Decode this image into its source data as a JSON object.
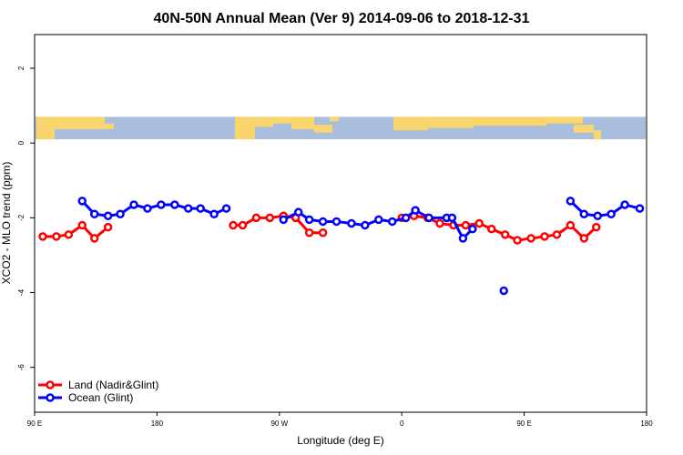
{
  "chart_data": {
    "type": "line",
    "title": "40N-50N Annual Mean (Ver 9)   2014-09-06 to 2018-12-31",
    "xlabel": "Longitude (deg E)",
    "ylabel": "XCO2 - MLO trend (ppm)",
    "xlim": [
      90,
      540
    ],
    "ylim": [
      -7.2,
      2.9
    ],
    "x_ticks": [
      {
        "value": 90,
        "label": "90 E"
      },
      {
        "value": 180,
        "label": "180"
      },
      {
        "value": 270,
        "label": "90 W"
      },
      {
        "value": 360,
        "label": "0"
      },
      {
        "value": 450,
        "label": "90 E"
      },
      {
        "value": 540,
        "label": "180"
      }
    ],
    "y_ticks": [
      {
        "value": 2,
        "label": "2"
      },
      {
        "value": 0,
        "label": "0"
      },
      {
        "value": -2,
        "label": "-2"
      },
      {
        "value": -4,
        "label": "-4"
      },
      {
        "value": -6,
        "label": "-6"
      }
    ],
    "map_band": {
      "y_top": 0.7,
      "y_bottom": 0.1,
      "land_color": "#f9d56e",
      "ocean_color": "#a9bedd"
    },
    "legend": {
      "position": "bottom-left"
    },
    "series": [
      {
        "name": "Land (Nadir&Glint)",
        "color": "#ff0000",
        "segments": [
          [
            [
              96,
              -2.5
            ],
            [
              106,
              -2.5
            ],
            [
              115,
              -2.45
            ],
            [
              125,
              -2.2
            ],
            [
              134,
              -2.55
            ],
            [
              144,
              -2.25
            ]
          ],
          [
            [
              236,
              -2.2
            ],
            [
              243,
              -2.2
            ],
            [
              253,
              -2.0
            ],
            [
              263,
              -2.0
            ],
            [
              273,
              -1.95
            ],
            [
              282,
              -2.0
            ],
            [
              292,
              -2.4
            ],
            [
              302,
              -2.4
            ]
          ],
          [
            [
              360,
              -2.0
            ],
            [
              369,
              -1.95
            ],
            [
              379,
              -2.0
            ],
            [
              388,
              -2.15
            ],
            [
              398,
              -2.2
            ],
            [
              407,
              -2.2
            ],
            [
              417,
              -2.15
            ],
            [
              426,
              -2.3
            ],
            [
              436,
              -2.45
            ],
            [
              445,
              -2.6
            ],
            [
              455,
              -2.55
            ],
            [
              465,
              -2.5
            ],
            [
              474,
              -2.45
            ],
            [
              484,
              -2.2
            ],
            [
              494,
              -2.55
            ],
            [
              503,
              -2.25
            ]
          ]
        ]
      },
      {
        "name": "Ocean (Glint)",
        "color": "#0000ff",
        "segments": [
          [
            [
              125,
              -1.55
            ],
            [
              134,
              -1.9
            ],
            [
              144,
              -1.95
            ],
            [
              153,
              -1.9
            ],
            [
              163,
              -1.65
            ],
            [
              173,
              -1.75
            ],
            [
              183,
              -1.65
            ],
            [
              193,
              -1.65
            ],
            [
              203,
              -1.75
            ],
            [
              212,
              -1.75
            ],
            [
              222,
              -1.9
            ],
            [
              231,
              -1.75
            ]
          ],
          [
            [
              273,
              -2.05
            ],
            [
              284,
              -1.85
            ],
            [
              292,
              -2.05
            ],
            [
              302,
              -2.1
            ],
            [
              312,
              -2.1
            ],
            [
              323,
              -2.15
            ],
            [
              333,
              -2.2
            ],
            [
              343,
              -2.05
            ],
            [
              353,
              -2.1
            ],
            [
              363,
              -2.0
            ],
            [
              370,
              -1.8
            ],
            [
              380,
              -2.0
            ],
            [
              393,
              -2.0
            ],
            [
              397,
              -2.0
            ],
            [
              405,
              -2.55
            ],
            [
              412,
              -2.3
            ]
          ],
          [
            [
              435,
              -3.95
            ]
          ],
          [
            [
              484,
              -1.55
            ],
            [
              494,
              -1.9
            ],
            [
              504,
              -1.95
            ],
            [
              514,
              -1.9
            ],
            [
              524,
              -1.65
            ],
            [
              535,
              -1.75
            ]
          ]
        ]
      }
    ]
  }
}
